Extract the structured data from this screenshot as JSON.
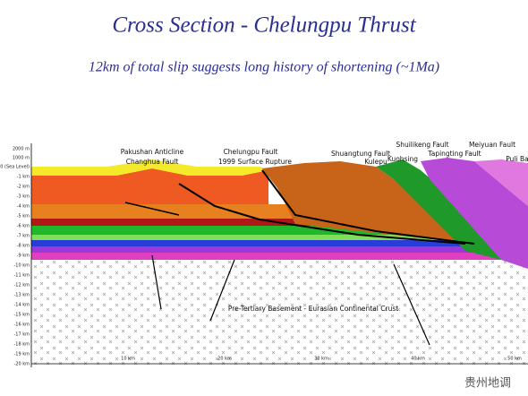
{
  "title": "Cross Section - Chelungpu Thrust",
  "subtitle": "12km of total slip suggests long history of shortening (~1Ma)",
  "labels": [
    "Pakushan Anticline",
    "Changhua Fault",
    "Chelungpu Fault",
    "1999 Surface Rupture",
    "Shuangtung Fault",
    "Shuilikeng Fault",
    "Meiyuan Fault",
    "Kuohsing",
    "Tapingting Fault",
    "Kulepu",
    "Puli Ba",
    "Pre-Tertiary Basement - Eurasian Continental Crust"
  ],
  "depth_axis": [
    "2000 m",
    "1000 m",
    "0 (Sea Level)",
    "-1 km",
    "-2 km",
    "-3 km",
    "-4 km",
    "-5 km",
    "-6 km",
    "-7 km",
    "-8 km",
    "-9 km",
    "-10 km",
    "-11 km",
    "-12 km",
    "-13 km",
    "-14 km",
    "-15 km",
    "-16 km",
    "-17 km",
    "-18 km",
    "-19 km",
    "-20 km"
  ],
  "distance_axis": [
    "10 km",
    "20 km",
    "30 km",
    "40 km",
    "50 km"
  ],
  "watermark": "贵州地调"
}
